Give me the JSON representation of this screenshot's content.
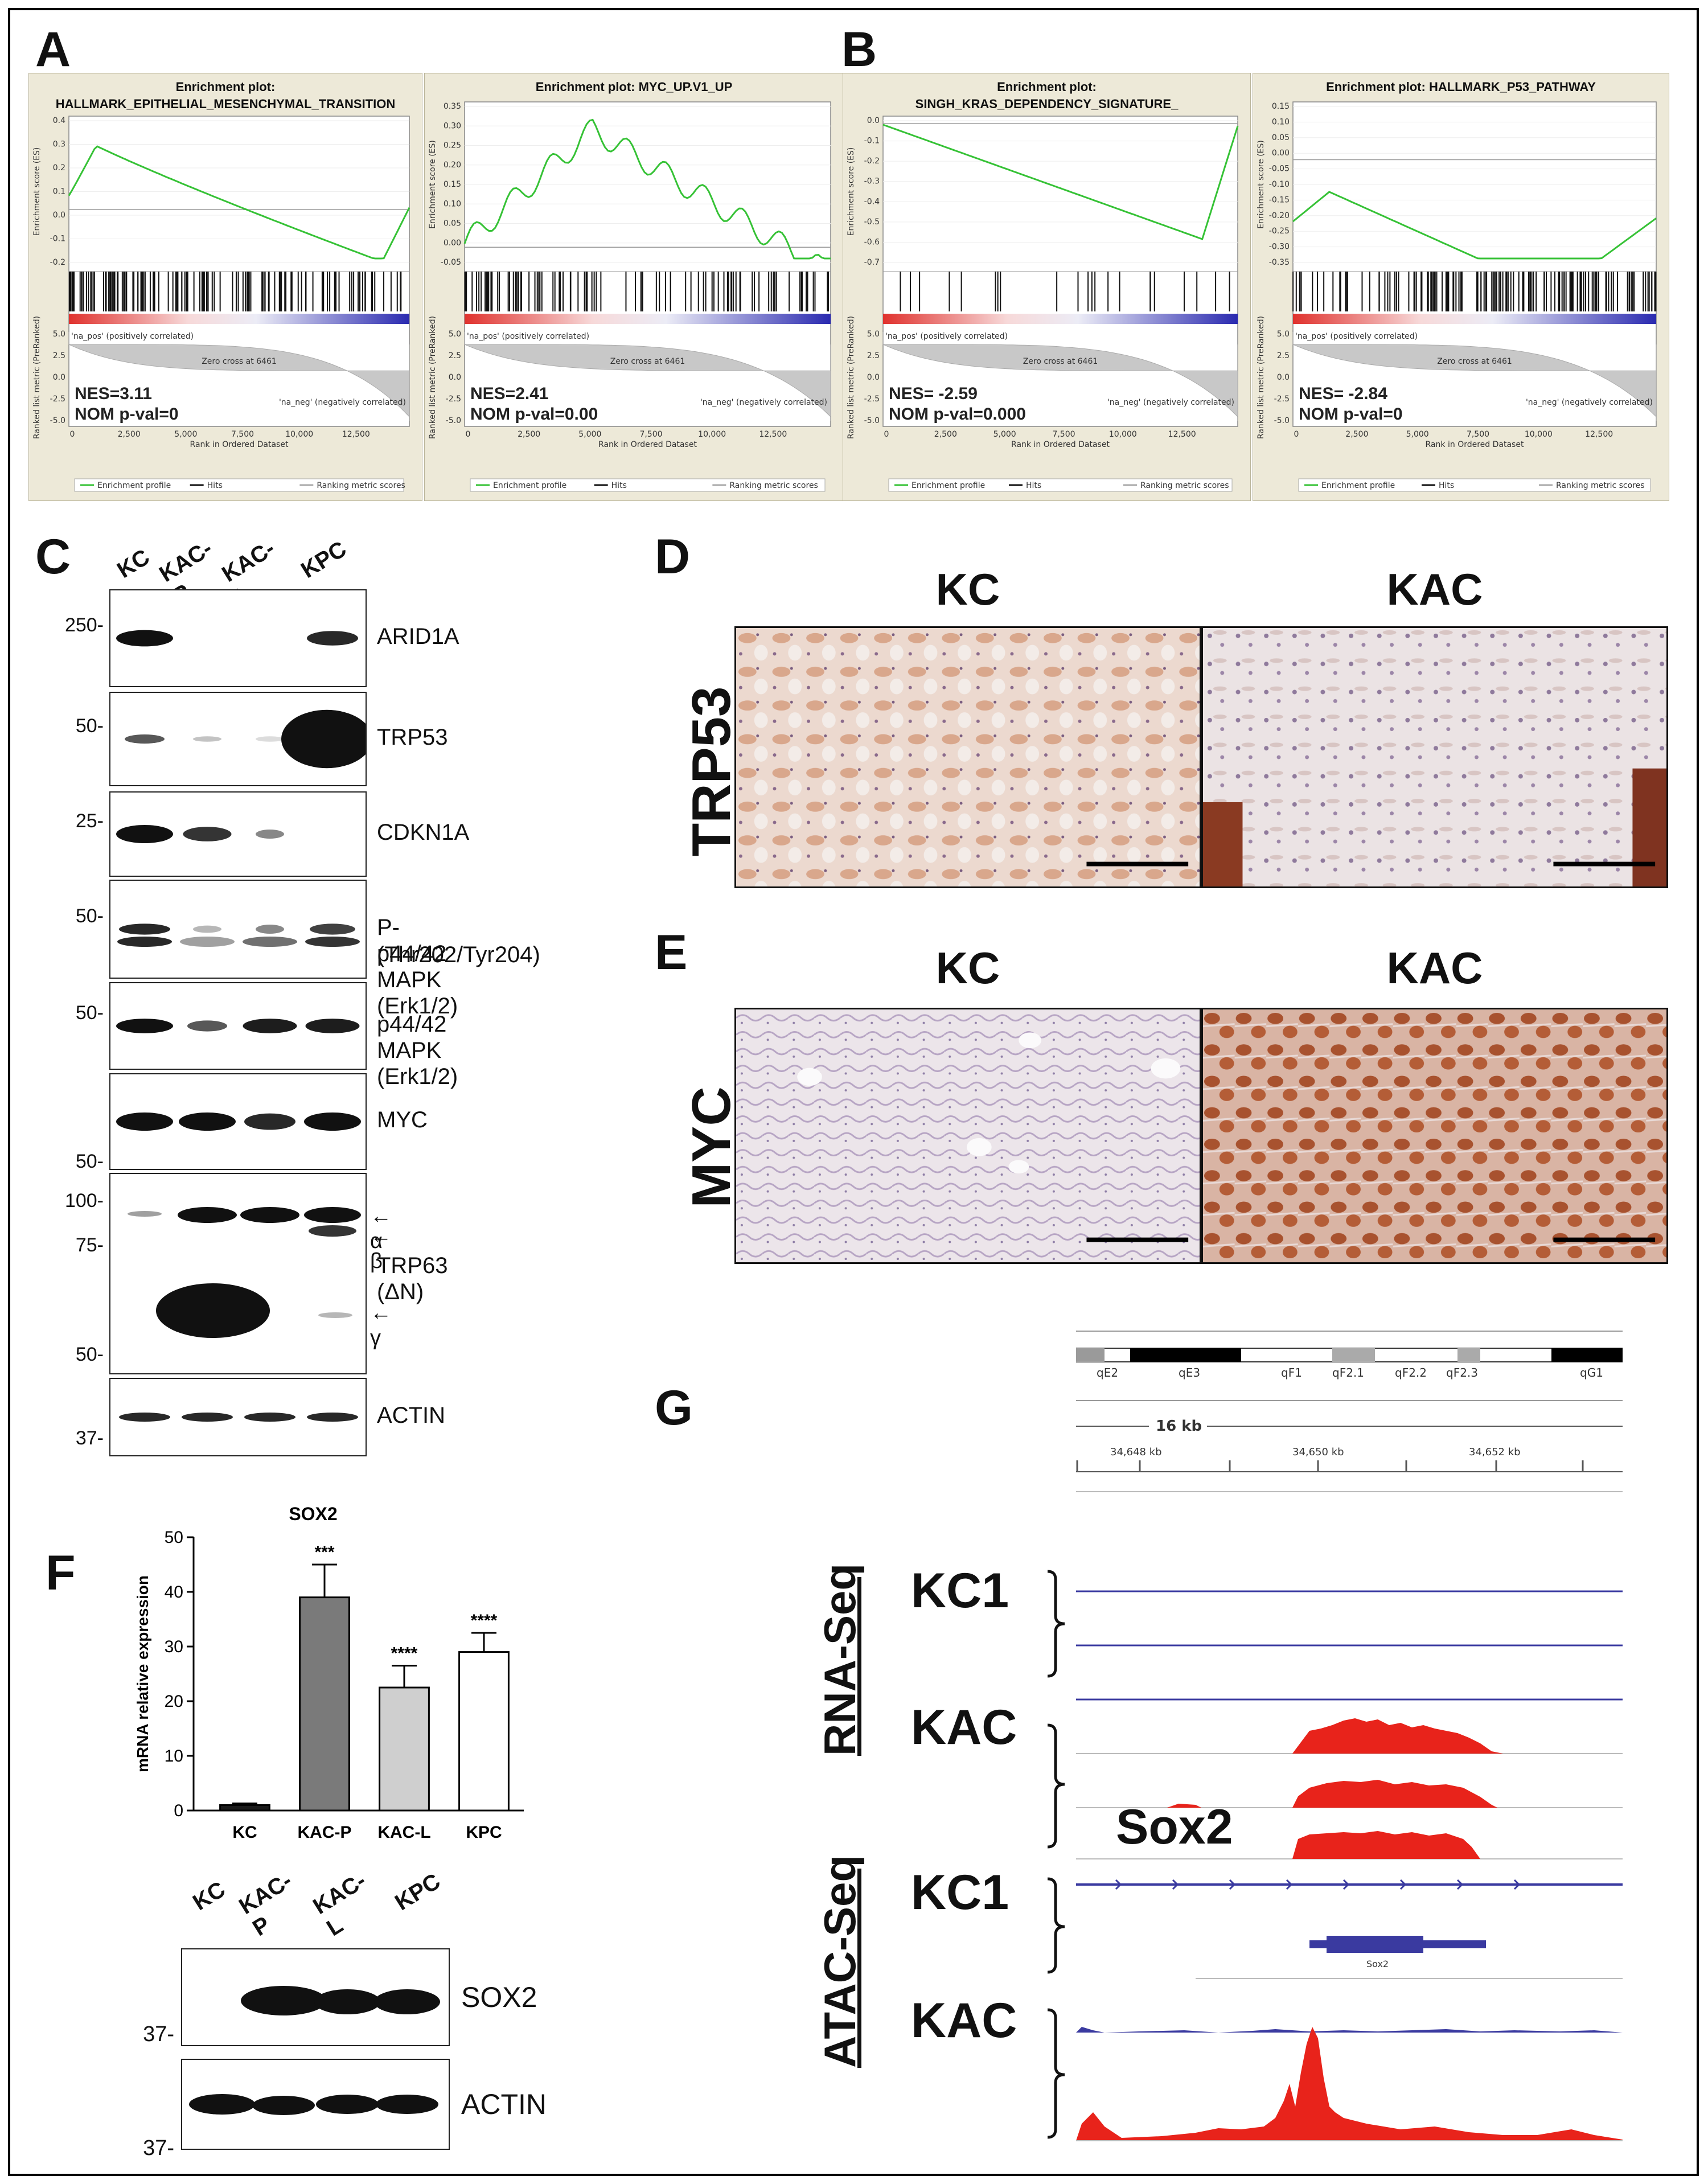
{
  "panels": {
    "A": "A",
    "B": "B",
    "C": "C",
    "D": "D",
    "E": "E",
    "F": "F",
    "G": "G"
  },
  "gsea": [
    {
      "title_line1": "Enrichment plot:",
      "title_line2": "HALLMARK_EPITHELIAL_MESENCHYMAL_TRANSITION",
      "nes": "NES=3.11",
      "pval": "NOM p-val=0",
      "yticks": [
        "0.4",
        "0.3",
        "0.2",
        "0.1",
        "0.0",
        "-0.1",
        "-0.2"
      ],
      "kind": "pos"
    },
    {
      "title_line1": "Enrichment plot: MYC_UP.V1_UP",
      "title_line2": "",
      "nes": "NES=2.41",
      "pval": "NOM p-val=0.00",
      "yticks": [
        "0.35",
        "0.30",
        "0.25",
        "0.20",
        "0.15",
        "0.10",
        "0.05",
        "0.00",
        "-0.05"
      ],
      "kind": "pos2"
    },
    {
      "title_line1": "Enrichment plot:",
      "title_line2": "SINGH_KRAS_DEPENDENCY_SIGNATURE_",
      "nes": "NES= -2.59",
      "pval": "NOM p-val=0.000",
      "yticks": [
        "0.0",
        "-0.1",
        "-0.2",
        "-0.3",
        "-0.4",
        "-0.5",
        "-0.6",
        "-0.7"
      ],
      "kind": "neg"
    },
    {
      "title_line1": "Enrichment plot: HALLMARK_P53_PATHWAY",
      "title_line2": "",
      "nes": "NES= -2.84",
      "pval": "NOM p-val=0",
      "yticks": [
        "0.15",
        "0.10",
        "0.05",
        "0.00",
        "-0.05",
        "-0.10",
        "-0.15",
        "-0.20",
        "-0.25",
        "-0.30",
        "-0.35"
      ],
      "kind": "neg2"
    }
  ],
  "gsea_common": {
    "ylabel": "Enrichment score (ES)",
    "ylabel2": "Ranked list metric (PreRanked)",
    "xlabel": "Rank in Ordered Dataset",
    "xticks": [
      "0",
      "2,500",
      "5,000",
      "7,500",
      "10,000",
      "12,500"
    ],
    "metric_ticks": [
      "5.0",
      "2.5",
      "0.0",
      "-2.5",
      "-5.0"
    ],
    "pos_corr": "'na_pos' (positively correlated)",
    "neg_corr": "'na_neg' (negatively correlated)",
    "zero_cross": "Zero cross at 6461",
    "legend": [
      "Enrichment profile",
      "Hits",
      "Ranking metric scores"
    ]
  },
  "panel_c": {
    "lanes": [
      "KC",
      "KAC-P",
      "KAC-L",
      "KPC"
    ],
    "blots": [
      {
        "label": "ARID1A",
        "mw": "250-"
      },
      {
        "label": "TRP53",
        "mw": "50-"
      },
      {
        "label": "CDKN1A",
        "mw": "25-"
      },
      {
        "label": "P-p44/42 MAPK (Erk1/2)",
        "label2": "(Thr202/Tyr204)",
        "mw": "50-"
      },
      {
        "label": "p44/42 MAPK (Erk1/2)",
        "mw": "50-"
      },
      {
        "label": "MYC",
        "mw": "50-"
      },
      {
        "label": "TRP63 (ΔN)",
        "mw": "100-",
        "mw2": "75-",
        "mw3": "50-",
        "alpha": "← α",
        "beta": "← β",
        "gamma": "← γ"
      },
      {
        "label": "ACTIN",
        "mw": "37-"
      }
    ]
  },
  "panel_d": {
    "left": "KC",
    "right": "KAC",
    "row": "TRP53"
  },
  "panel_e": {
    "left": "KC",
    "right": "KAC",
    "row": "MYC"
  },
  "chart_data": {
    "type": "bar",
    "title": "SOX2",
    "ylabel": "mRNA relative expression",
    "xlabel": "",
    "categories": [
      "KC",
      "KAC-P",
      "KAC-L",
      "KPC"
    ],
    "values": [
      1,
      39,
      22.5,
      29
    ],
    "errors": [
      0.3,
      6,
      4,
      3.5
    ],
    "significance": [
      "",
      "***",
      "****",
      "****"
    ],
    "ylim": [
      0,
      50
    ],
    "yticks": [
      0,
      10,
      20,
      30,
      40,
      50
    ],
    "colors": [
      "#1a1a1a",
      "#7a7a7a",
      "#cfcfcf",
      "#ffffff"
    ]
  },
  "panel_f_blot": {
    "lanes": [
      "KC",
      "KAC-P",
      "KAC-L",
      "KPC"
    ],
    "sox2": "SOX2",
    "actin": "ACTIN",
    "mw": "37-"
  },
  "panel_g": {
    "bands": [
      "qE2",
      "qE3",
      "qF1",
      "qF2.1",
      "qF2.2",
      "qF2.3",
      "qG1"
    ],
    "scale": "16 kb",
    "coords": [
      "34,648 kb",
      "34,650 kb",
      "34,652 kb"
    ],
    "rnaseq": "RNA-Seq",
    "atacseq": "ATAC-Seq",
    "kc1": "KC1",
    "kac": "KAC",
    "gene": "Sox2",
    "gene_small": "Sox2"
  }
}
